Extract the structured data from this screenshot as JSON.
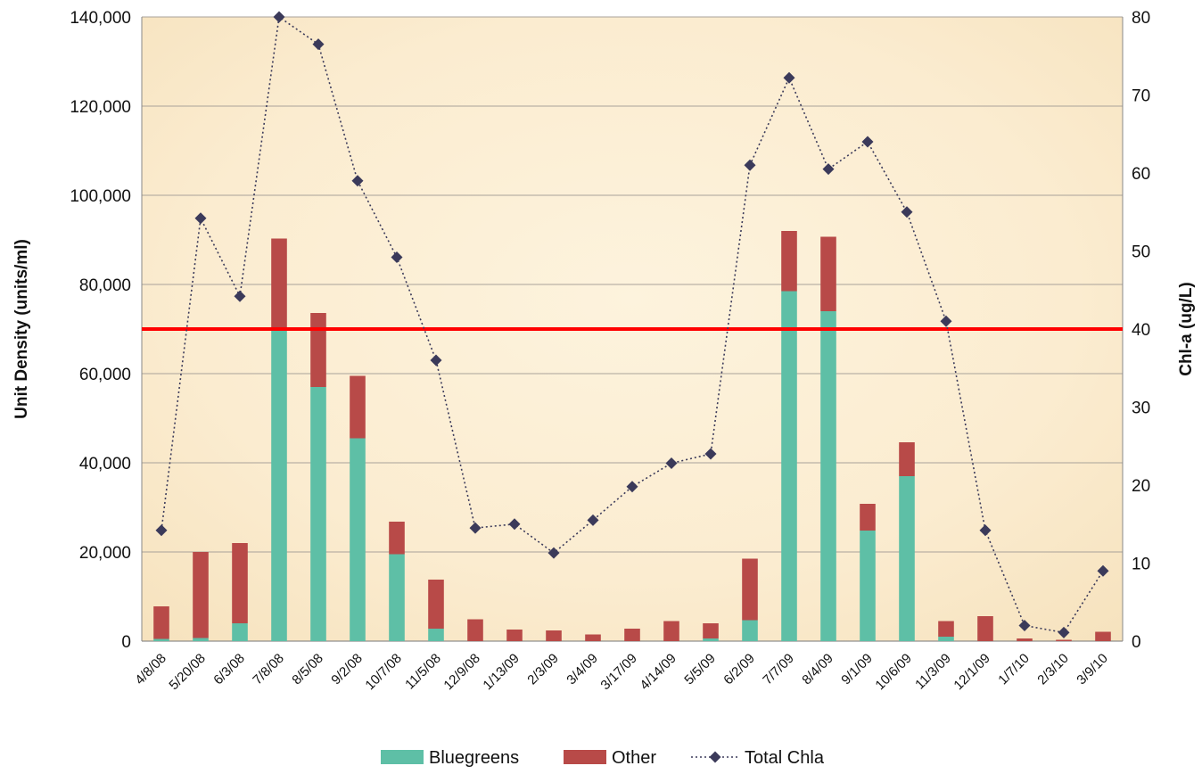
{
  "chart_data": {
    "type": "bar",
    "stacked": true,
    "categories": [
      "4/8/08",
      "5/20/08",
      "6/3/08",
      "7/8/08",
      "8/5/08",
      "9/2/08",
      "10/7/08",
      "11/5/08",
      "12/9/08",
      "1/13/09",
      "2/3/09",
      "3/4/09",
      "3/17/09",
      "4/14/09",
      "5/5/09",
      "6/2/09",
      "7/7/09",
      "8/4/09",
      "9/1/09",
      "10/6/09",
      "11/3/09",
      "12/1/09",
      "1/7/10",
      "2/3/10",
      "3/9/10"
    ],
    "series": [
      {
        "name": "Bluegreens",
        "type": "bar",
        "axis": "left",
        "color": "#5ebfa6",
        "values": [
          500,
          700,
          4000,
          70000,
          57000,
          45500,
          19500,
          2800,
          0,
          0,
          0,
          0,
          0,
          0,
          600,
          4700,
          78500,
          74000,
          24800,
          37000,
          1000,
          0,
          0,
          0,
          0
        ]
      },
      {
        "name": "Other",
        "type": "bar",
        "axis": "left",
        "color": "#b84a48",
        "values": [
          7300,
          19300,
          18000,
          20300,
          16600,
          14000,
          7300,
          11000,
          4900,
          2600,
          2400,
          1500,
          2800,
          4500,
          3400,
          13800,
          13500,
          16700,
          6000,
          7600,
          3500,
          5600,
          600,
          300,
          2100
        ]
      },
      {
        "name": "Total Chla",
        "type": "line",
        "axis": "right",
        "color": "#3b3a5a",
        "values": [
          14.2,
          54.2,
          44.2,
          80,
          76.5,
          59,
          49.2,
          36,
          14.5,
          15,
          11.3,
          15.5,
          19.8,
          22.8,
          24,
          61,
          72.2,
          60.5,
          64,
          55,
          41,
          14.2,
          2,
          1.1,
          9
        ]
      }
    ],
    "ylabel": "Unit Density (units/ml)",
    "y2label": "Chl-a (ug/L)",
    "ylim": [
      0,
      140000
    ],
    "y2lim": [
      0,
      80
    ],
    "yticks": [
      "0",
      "20,000",
      "40,000",
      "60,000",
      "80,000",
      "100,000",
      "120,000",
      "140,000"
    ],
    "y2ticks": [
      "0",
      "10",
      "20",
      "30",
      "40",
      "50",
      "60",
      "70",
      "80"
    ],
    "reference_line": {
      "value": 70000,
      "axis": "left",
      "color": "#ff0000"
    },
    "legend_position": "bottom",
    "grid": true,
    "plot_background": "#fbefd6"
  }
}
